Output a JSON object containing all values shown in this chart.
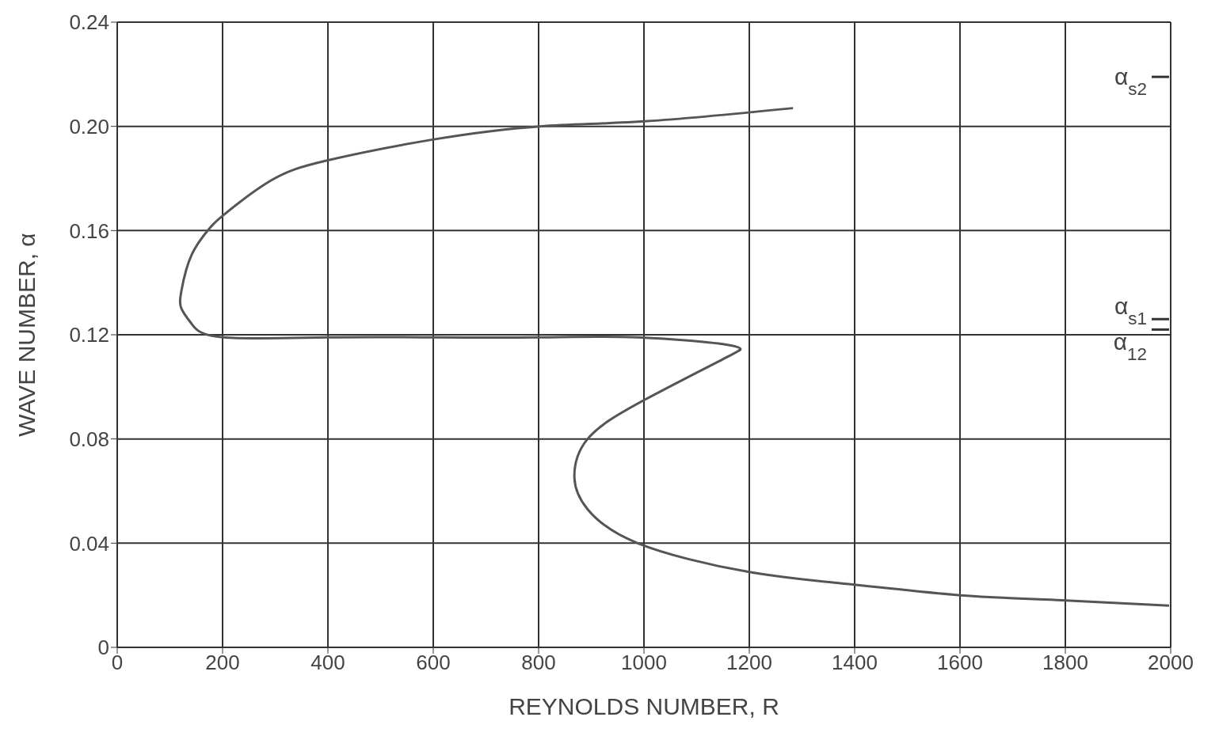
{
  "chart_data": {
    "type": "line",
    "xlabel": "REYNOLDS NUMBER, R",
    "ylabel": "WAVE NUMBER, α",
    "xlim": [
      0,
      2000
    ],
    "xticks": [
      0,
      200,
      400,
      600,
      800,
      1000,
      1200,
      1400,
      1600,
      1800,
      2000
    ],
    "ylim": [
      0,
      0.24
    ],
    "yticks": [
      {
        "value": 0,
        "label": "0"
      },
      {
        "value": 0.04,
        "label": "0.04"
      },
      {
        "value": 0.08,
        "label": "0.08"
      },
      {
        "value": 0.12,
        "label": "0.12"
      },
      {
        "value": 0.16,
        "label": "0.16"
      },
      {
        "value": 0.2,
        "label": "0.20"
      },
      {
        "value": 0.24,
        "label": "0.24"
      }
    ],
    "grid": true,
    "marker": "none",
    "line_style": "solid",
    "series": [
      {
        "color": "#555555",
        "x": [
          1283,
          1006,
          803,
          601,
          400,
          290,
          202,
          176,
          142,
          122,
          122,
          142,
          202,
          400,
          601,
          803,
          988,
          1163,
          1180,
          1163,
          1001,
          893,
          868,
          893,
          988,
          1198,
          1402,
          1601,
          1802,
          1997
        ],
        "values": [
          0.207,
          0.202,
          0.2,
          0.195,
          0.187,
          0.179,
          0.166,
          0.161,
          0.151,
          0.137,
          0.13,
          0.124,
          0.119,
          0.119,
          0.119,
          0.119,
          0.119,
          0.116,
          0.114,
          0.112,
          0.095,
          0.08,
          0.065,
          0.053,
          0.04,
          0.029,
          0.024,
          0.02,
          0.018,
          0.016
        ]
      }
    ],
    "ref_lines": [
      {
        "axis": "y",
        "value": 0.219,
        "label": "α$_{s2}$"
      },
      {
        "axis": "y",
        "value": 0.126,
        "label": "α$_{s1}$"
      },
      {
        "axis": "y",
        "value": 0.122,
        "label": "α$_{12}$"
      }
    ]
  }
}
